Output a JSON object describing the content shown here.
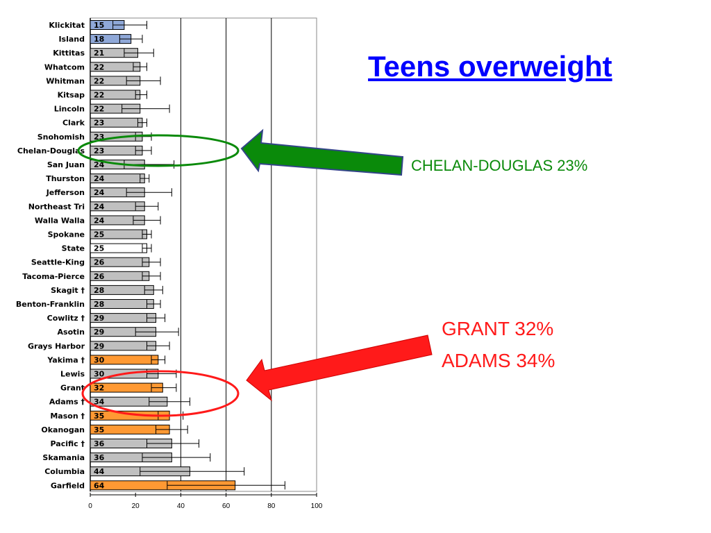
{
  "slide": {
    "title": "Teens overweight",
    "callouts": {
      "chelan": "CHELAN-DOUGLAS 23%",
      "grant": "GRANT 32%",
      "adams": "ADAMS 34%"
    }
  },
  "colors": {
    "blue": "#8fa8d8",
    "gray": "#c0c0c0",
    "white": "#ffffff",
    "orange": "#ff9933",
    "green_arrow": "#0a8a0a",
    "red_arrow": "#ff1a1a",
    "title": "#0000ff"
  },
  "chart_data": {
    "type": "bar",
    "orientation": "horizontal",
    "title": "",
    "xlabel": "",
    "ylabel": "",
    "xlim": [
      0,
      100
    ],
    "xticks": [
      "0",
      "20",
      "40",
      "60",
      "80",
      "100"
    ],
    "grid": "vertical lines at 40, 60, 80",
    "categories": [
      "Klickitat",
      "Island",
      "Kittitas",
      "Whatcom",
      "Whitman",
      "Kitsap",
      "Lincoln",
      "Clark",
      "Snohomish",
      "Chelan-Douglas",
      "San Juan",
      "Thurston",
      "Jefferson",
      "Northeast Tri",
      "Walla Walla",
      "Spokane",
      "State",
      "Seattle-King",
      "Tacoma-Pierce",
      "Skagit †",
      "Benton-Franklin",
      "Cowlitz †",
      "Asotin",
      "Grays Harbor",
      "Yakima †",
      "Lewis",
      "Grant",
      "Adams †",
      "Mason †",
      "Okanogan",
      "Pacific †",
      "Skamania",
      "Columbia",
      "Garfield"
    ],
    "values": [
      15,
      18,
      21,
      22,
      22,
      22,
      22,
      23,
      23,
      23,
      24,
      24,
      24,
      24,
      24,
      25,
      25,
      26,
      26,
      28,
      28,
      29,
      29,
      29,
      30,
      30,
      32,
      34,
      35,
      35,
      36,
      36,
      44,
      64
    ],
    "value_labels": [
      "15",
      "18",
      "21",
      "22",
      "22",
      "22",
      "22",
      "23",
      "23",
      "23",
      "24",
      "24",
      "24",
      "24",
      "24",
      "25",
      "25",
      "26",
      "26",
      "28",
      "28",
      "29",
      "29",
      "29",
      "30",
      "30",
      "32",
      "34",
      "35",
      "35",
      "36",
      "36",
      "44",
      "64"
    ],
    "error_low": [
      10,
      13,
      15,
      19,
      16,
      20,
      14,
      21,
      20,
      20,
      15,
      22,
      16,
      20,
      19,
      23,
      23,
      23,
      23,
      24,
      25,
      25,
      20,
      25,
      27,
      25,
      27,
      26,
      30,
      29,
      25,
      23,
      22,
      34
    ],
    "error_high": [
      25,
      23,
      28,
      25,
      31,
      25,
      35,
      25,
      27,
      27,
      37,
      26,
      36,
      30,
      31,
      27,
      27,
      31,
      31,
      32,
      31,
      33,
      39,
      35,
      33,
      38,
      38,
      44,
      41,
      43,
      48,
      53,
      68,
      86
    ],
    "bar_colors": [
      "blue",
      "blue",
      "gray",
      "gray",
      "gray",
      "gray",
      "gray",
      "gray",
      "gray",
      "gray",
      "gray",
      "gray",
      "gray",
      "gray",
      "gray",
      "gray",
      "white",
      "gray",
      "gray",
      "gray",
      "gray",
      "gray",
      "gray",
      "gray",
      "orange",
      "gray",
      "orange",
      "gray",
      "orange",
      "orange",
      "gray",
      "gray",
      "gray",
      "orange"
    ],
    "highlighted": [
      "Chelan-Douglas",
      "Grant",
      "Adams †"
    ]
  }
}
